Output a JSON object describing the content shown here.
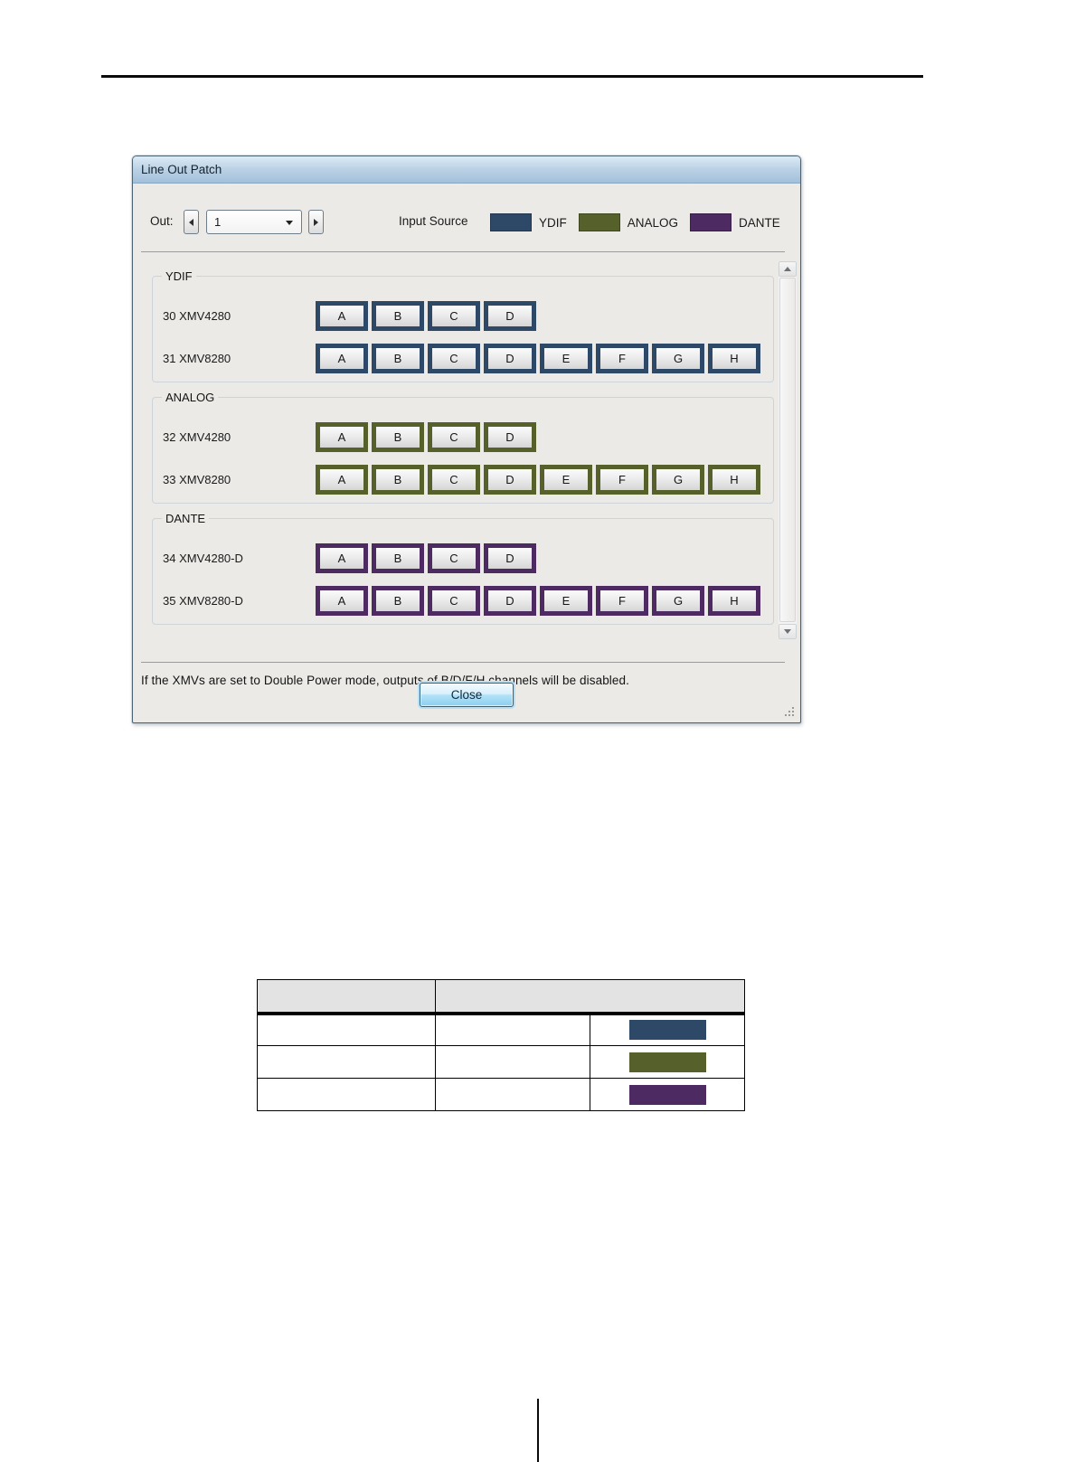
{
  "dialog": {
    "title": "Line Out Patch",
    "out_label": "Out:",
    "out_value": "1",
    "legend": {
      "label": "Input Source",
      "items": [
        {
          "name": "YDIF",
          "color": "#2e4867"
        },
        {
          "name": "ANALOG",
          "color": "#55602b"
        },
        {
          "name": "DANTE",
          "color": "#4d2b62"
        }
      ]
    },
    "groups": [
      {
        "name": "YDIF",
        "color": "#2e4867",
        "devices": [
          {
            "label": "30 XMV4280",
            "channels": [
              "A",
              "B",
              "C",
              "D"
            ]
          },
          {
            "label": "31 XMV8280",
            "channels": [
              "A",
              "B",
              "C",
              "D",
              "E",
              "F",
              "G",
              "H"
            ]
          }
        ]
      },
      {
        "name": "ANALOG",
        "color": "#55602b",
        "devices": [
          {
            "label": "32 XMV4280",
            "channels": [
              "A",
              "B",
              "C",
              "D"
            ]
          },
          {
            "label": "33 XMV8280",
            "channels": [
              "A",
              "B",
              "C",
              "D",
              "E",
              "F",
              "G",
              "H"
            ]
          }
        ]
      },
      {
        "name": "DANTE",
        "color": "#4d2b62",
        "devices": [
          {
            "label": "34 XMV4280-D",
            "channels": [
              "A",
              "B",
              "C",
              "D"
            ]
          },
          {
            "label": "35 XMV8280-D",
            "channels": [
              "A",
              "B",
              "C",
              "D",
              "E",
              "F",
              "G",
              "H"
            ]
          }
        ]
      }
    ],
    "note": "If the XMVs are set to Double Power mode, outputs of  B/D/F/H channels will be disabled.",
    "close_label": "Close"
  },
  "table": {
    "header_cells": [
      "",
      ""
    ],
    "rows": [
      {
        "cells": [
          "",
          ""
        ],
        "swatch_color": "#2e4867"
      },
      {
        "cells": [
          "",
          ""
        ],
        "swatch_color": "#55602b"
      },
      {
        "cells": [
          "",
          ""
        ],
        "swatch_color": "#4d2b62"
      }
    ]
  }
}
